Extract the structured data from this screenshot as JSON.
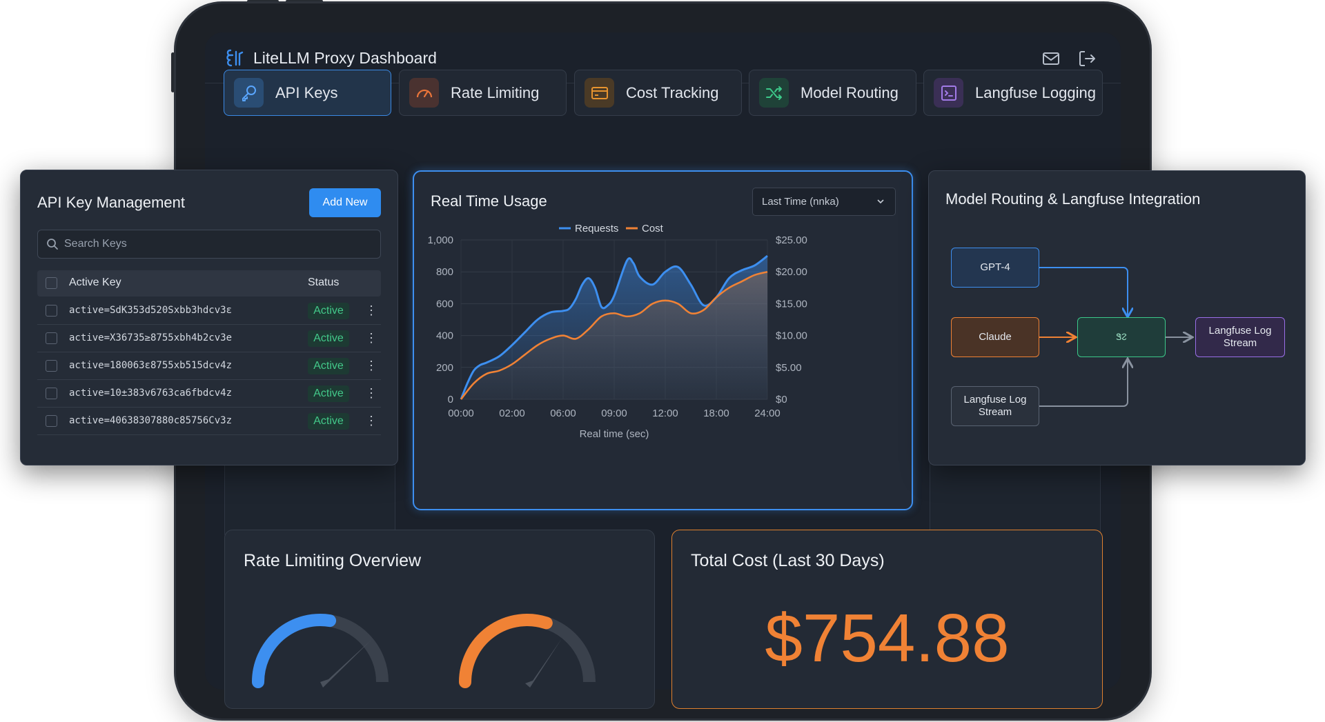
{
  "app": {
    "title": "LiteLLM Proxy Dashboard"
  },
  "header_icons": [
    "mail-icon",
    "logout-icon"
  ],
  "tabs": [
    {
      "label": "API Keys",
      "icon": "key-icon",
      "color": "#3b8ae6",
      "active": true
    },
    {
      "label": "Rate Limiting",
      "icon": "speedometer-icon",
      "color": "#e8743a",
      "active": false
    },
    {
      "label": "Cost Tracking",
      "icon": "credit-card-icon",
      "color": "#e8942f",
      "active": false
    },
    {
      "label": "Model Routing",
      "icon": "shuffle-icon",
      "color": "#3cc98a",
      "active": false
    },
    {
      "label": "Langfuse Logging",
      "icon": "terminal-icon",
      "color": "#a27be8",
      "active": false
    }
  ],
  "api_keys": {
    "title": "API Key Management",
    "add_button": "Add New",
    "search_placeholder": "Search Keys",
    "columns": [
      "Active Key",
      "Status"
    ],
    "rows": [
      {
        "key": "active=SdK353d520Sxbb3hdcv3ε",
        "status": "Active"
      },
      {
        "key": "active=X36735≥8755xbh4b2cv3e",
        "status": "Active"
      },
      {
        "key": "active=180063ε8755xb515dcv4z",
        "status": "Active"
      },
      {
        "key": "active=10±383v6763ca6fbdcv4z",
        "status": "Active"
      },
      {
        "key": "active=40638307880c85756Cv3z",
        "status": "Active"
      }
    ]
  },
  "usage": {
    "title": "Real Time Usage",
    "range_select": "Last Time (nnka)"
  },
  "chart_data": {
    "type": "line",
    "title": "Real Time Usage",
    "xlabel": "Real time (sec)",
    "ylabel": "",
    "x_ticks": [
      "00:00",
      "02:00",
      "06:00",
      "09:00",
      "12:00",
      "18:00",
      "24:00"
    ],
    "y_ticks_left": [
      "0",
      "200",
      "400",
      "600",
      "800",
      "1,000"
    ],
    "y_ticks_right": [
      "$0",
      "$5.00",
      "$10.00",
      "$15.00",
      "$20.00",
      "$25.00"
    ],
    "ylim_left": [
      0,
      1000
    ],
    "ylim_right": [
      0,
      25
    ],
    "legend_position": "top-center",
    "grid": true,
    "series": [
      {
        "name": "Requests",
        "axis": "left",
        "color": "#3d8ff0",
        "x": [
          0,
          0.5,
          1,
          1.5,
          2,
          3,
          4,
          5,
          6,
          7,
          8,
          8.5,
          9,
          9.5,
          10,
          10.5,
          11,
          11.5,
          12,
          13,
          13.5,
          14,
          15,
          16,
          17,
          18,
          19,
          20,
          21,
          22,
          23,
          24
        ],
        "values": [
          0,
          100,
          180,
          215,
          230,
          270,
          340,
          420,
          500,
          545,
          555,
          570,
          630,
          720,
          760,
          700,
          580,
          590,
          650,
          870,
          855,
          770,
          720,
          800,
          830,
          720,
          590,
          640,
          760,
          810,
          840,
          900
        ]
      },
      {
        "name": "Cost",
        "axis": "right",
        "color": "#f08235",
        "x": [
          0,
          1,
          2,
          3,
          4,
          5,
          6,
          7,
          8,
          9,
          10,
          11,
          12,
          13,
          14,
          15,
          16,
          17,
          18,
          19,
          20,
          21,
          22,
          23,
          24
        ],
        "values": [
          0,
          2.5,
          4.0,
          4.5,
          5.5,
          7.0,
          8.5,
          9.5,
          10.0,
          9.5,
          11.0,
          13.0,
          13.5,
          13.0,
          13.5,
          15.0,
          15.5,
          15.0,
          13.5,
          14.0,
          16.0,
          17.5,
          18.5,
          19.5,
          20.0
        ]
      }
    ]
  },
  "routing": {
    "title": "Model Routing & Langfuse Integration",
    "nodes": {
      "gpt4": "GPT-4",
      "claude": "Claude",
      "router": "Ꮥᱮ",
      "langfuse_right": "Langfuse Log Stream",
      "langfuse_bottom": "Langfuse Log Stream"
    }
  },
  "rate_limiting": {
    "title": "Rate Limiting Overview",
    "gauges": [
      0.55,
      0.6
    ]
  },
  "cost": {
    "title": "Total Cost (Last 30 Days)",
    "value": "$754.88"
  },
  "colors": {
    "accent": "#3d8ff0",
    "cost": "#f08235",
    "success": "#43c98a"
  }
}
